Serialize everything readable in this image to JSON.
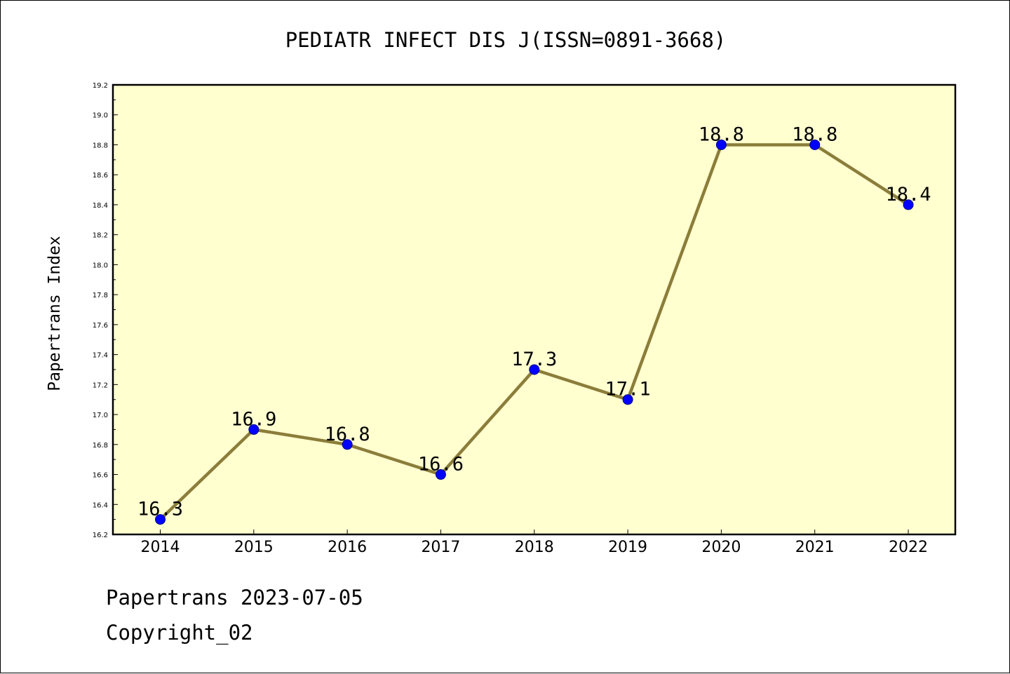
{
  "chart_data": {
    "type": "line",
    "title": "PEDIATR INFECT DIS J(ISSN=0891-3668)",
    "xlabel": "",
    "ylabel": "Papertrans Index",
    "categories": [
      "2014",
      "2015",
      "2016",
      "2017",
      "2018",
      "2019",
      "2020",
      "2021",
      "2022"
    ],
    "values": [
      16.3,
      16.9,
      16.8,
      16.6,
      17.3,
      17.1,
      18.8,
      18.8,
      18.4
    ],
    "data_labels": [
      "16.3",
      "16.9",
      "16.8",
      "16.6",
      "17.3",
      "17.1",
      "18.8",
      "18.8",
      "18.4"
    ],
    "ylim": [
      16.2,
      19.2
    ],
    "yticks": [
      "16.2",
      "16.4",
      "16.6",
      "16.8",
      "17.0",
      "17.2",
      "17.4",
      "17.6",
      "17.8",
      "18.0",
      "18.2",
      "18.4",
      "18.6",
      "18.8",
      "19.0",
      "19.2"
    ],
    "grid": false,
    "legend": "none",
    "colors": {
      "plot_background": "#ffffd0",
      "line": "#8b7d3a",
      "marker": "#0000ff"
    }
  },
  "footer": {
    "line1": "Papertrans 2023-07-05",
    "line2": "Copyright_02"
  }
}
